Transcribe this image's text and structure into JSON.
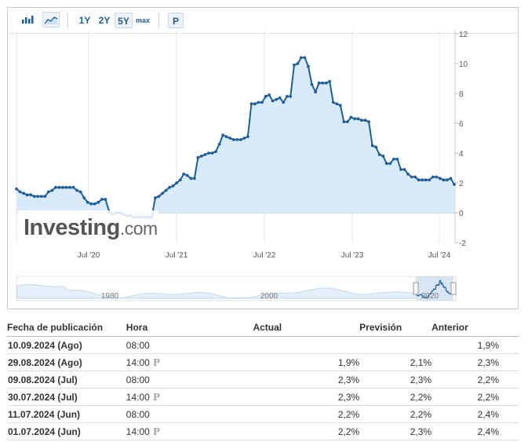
{
  "toolbar": {
    "ranges": [
      "1Y",
      "2Y",
      "5Y",
      "max"
    ],
    "active_range": "5Y",
    "p_label": "P"
  },
  "watermark": {
    "name": "Investing",
    "suffix": ".com"
  },
  "colors": {
    "line": "#1f5f9e",
    "area": "#d9eafb",
    "red": "#d81e1e",
    "green": "#1a9c1a"
  },
  "chart_data": {
    "type": "area",
    "x_ticks": [
      "Jul '20",
      "Jul '21",
      "Jul '22",
      "Jul '23",
      "Jul '24"
    ],
    "y_ticks": [
      12,
      10,
      8,
      6,
      4,
      2,
      0,
      -2
    ],
    "ylim": [
      -2,
      12
    ],
    "y_axis_side": "right",
    "grid": "x-only",
    "values": [
      1.6,
      1.4,
      1.3,
      1.2,
      1.2,
      1.1,
      1.1,
      1.1,
      1.1,
      1.4,
      1.5,
      1.7,
      1.7,
      1.7,
      1.7,
      1.7,
      1.7,
      1.5,
      1.4,
      1.0,
      0.7,
      0.6,
      0.6,
      0.7,
      0.9,
      0.9,
      0.1,
      -0.1,
      0.0,
      0.0,
      -0.1,
      -0.2,
      -0.2,
      -0.3,
      -0.3,
      -0.3,
      -0.3,
      -0.3,
      -0.3,
      1.0,
      1.1,
      1.3,
      1.5,
      1.7,
      1.8,
      2.0,
      2.2,
      2.6,
      2.5,
      2.3,
      2.3,
      3.7,
      3.8,
      3.9,
      4.0,
      4.0,
      4.1,
      4.6,
      5.2,
      5.1,
      5.0,
      4.9,
      4.9,
      4.9,
      5.0,
      5.1,
      7.3,
      7.3,
      7.4,
      7.4,
      7.8,
      7.9,
      7.5,
      7.6,
      7.7,
      7.4,
      7.8,
      7.8,
      9.9,
      10.0,
      10.4,
      10.4,
      9.8,
      8.6,
      8.1,
      8.7,
      8.7,
      8.7,
      8.8,
      7.4,
      7.3,
      7.2,
      6.1,
      6.1,
      6.4,
      6.3,
      6.3,
      6.2,
      6.2,
      6.1,
      4.5,
      4.4,
      3.9,
      3.8,
      3.3,
      3.3,
      3.6,
      3.6,
      2.9,
      2.9,
      2.6,
      2.4,
      2.4,
      2.2,
      2.2,
      2.2,
      2.2,
      2.4,
      2.4,
      2.3,
      2.2,
      2.2,
      2.3,
      1.9
    ],
    "navigator": {
      "year_labels": [
        "1980",
        "2000",
        "2020"
      ]
    }
  },
  "table": {
    "headers": {
      "date": "Fecha de publicación",
      "time": "Hora",
      "actual": "Actual",
      "forecast": "Previsión",
      "previous": "Anterior"
    },
    "rows": [
      {
        "date": "10.09.2024 (Ago)",
        "time": "08:00",
        "badge": "",
        "actual": "",
        "actual_color": "",
        "forecast": "",
        "previous": "1,9%"
      },
      {
        "date": "29.08.2024 (Ago)",
        "time": "14:00",
        "badge": "P",
        "actual": "1,9%",
        "actual_color": "red",
        "forecast": "2,1%",
        "previous": "2,3%"
      },
      {
        "date": "09.08.2024 (Jul)",
        "time": "08:00",
        "badge": "",
        "actual": "2,3%",
        "actual_color": "",
        "forecast": "2,3%",
        "previous": "2,2%"
      },
      {
        "date": "30.07.2024 (Jul)",
        "time": "14:00",
        "badge": "P",
        "actual": "2,3%",
        "actual_color": "green",
        "forecast": "2,2%",
        "previous": "2,2%"
      },
      {
        "date": "11.07.2024 (Jun)",
        "time": "08:00",
        "badge": "",
        "actual": "2,2%",
        "actual_color": "",
        "forecast": "2,2%",
        "previous": "2,4%"
      },
      {
        "date": "01.07.2024 (Jun)",
        "time": "14:00",
        "badge": "P",
        "actual": "2,2%",
        "actual_color": "red",
        "forecast": "2,3%",
        "previous": "2,4%"
      }
    ]
  }
}
